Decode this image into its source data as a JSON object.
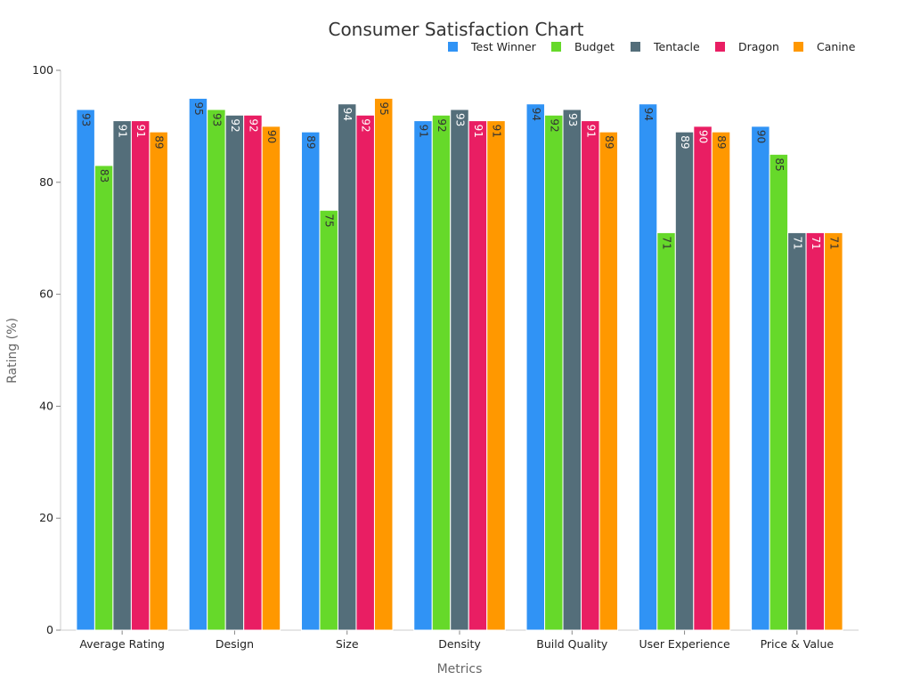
{
  "chart_data": {
    "type": "bar",
    "title": "Consumer Satisfaction Chart",
    "xlabel": "Metrics",
    "ylabel": "Rating (%)",
    "ylim": [
      0,
      100
    ],
    "yticks": [
      0,
      20,
      40,
      60,
      80,
      100
    ],
    "grid": false,
    "legend_position": "top-right",
    "categories": [
      "Average Rating",
      "Design",
      "Size",
      "Density",
      "Build Quality",
      "User Experience",
      "Price & Value"
    ],
    "series": [
      {
        "name": "Test Winner",
        "color": "#3093f5",
        "label_color": "#333333",
        "values": [
          93,
          95,
          89,
          91,
          94,
          94,
          90
        ]
      },
      {
        "name": "Budget",
        "color": "#66d92a",
        "label_color": "#333333",
        "values": [
          83,
          93,
          75,
          92,
          92,
          71,
          85
        ]
      },
      {
        "name": "Tentacle",
        "color": "#546e7a",
        "label_color": "#ffffff",
        "values": [
          91,
          92,
          94,
          93,
          93,
          89,
          71
        ]
      },
      {
        "name": "Dragon",
        "color": "#e91e63",
        "label_color": "#ffffff",
        "values": [
          91,
          92,
          92,
          91,
          91,
          90,
          71
        ]
      },
      {
        "name": "Canine",
        "color": "#ff9800",
        "label_color": "#333333",
        "values": [
          89,
          90,
          95,
          91,
          89,
          89,
          71
        ]
      }
    ]
  }
}
